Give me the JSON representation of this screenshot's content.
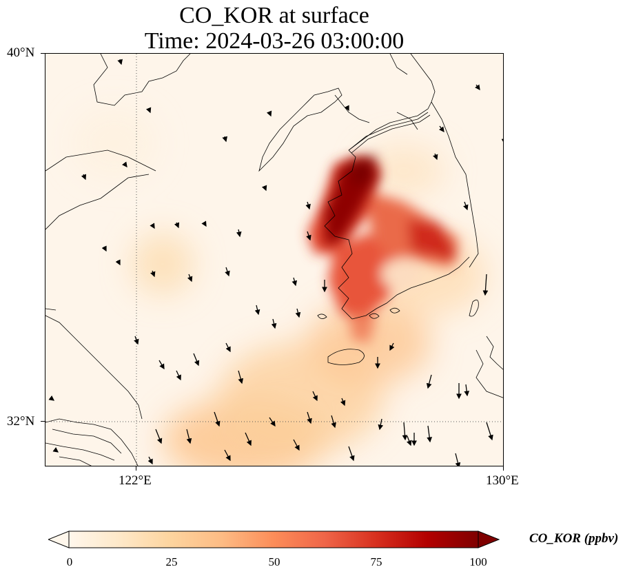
{
  "title": {
    "line1": "CO_KOR at surface",
    "line2": "Time: 2024-03-26 03:00:00"
  },
  "axes": {
    "lat_ticks": [
      "40°N",
      "32°N"
    ],
    "lon_ticks": [
      "122°E",
      "130°E"
    ]
  },
  "map": {
    "lon_range": [
      120,
      130
    ],
    "lat_range": [
      31,
      40
    ],
    "graticule": {
      "lon": [
        122
      ],
      "lat": [
        32
      ],
      "style": "dotted"
    },
    "field": "CO_KOR",
    "colormap": "OrRd",
    "wind_vectors": "shown as black arrows"
  },
  "colorbar": {
    "label": "CO_KOR (ppbv)",
    "ticks": [
      "0",
      "25",
      "50",
      "75",
      "100"
    ],
    "range": [
      0,
      100
    ],
    "extend": "both",
    "colors": [
      "#fff7ec",
      "#fee8c8",
      "#fdd49e",
      "#fdbb84",
      "#fc8d59",
      "#ef6548",
      "#d7301f",
      "#b30000",
      "#7f0000"
    ]
  }
}
